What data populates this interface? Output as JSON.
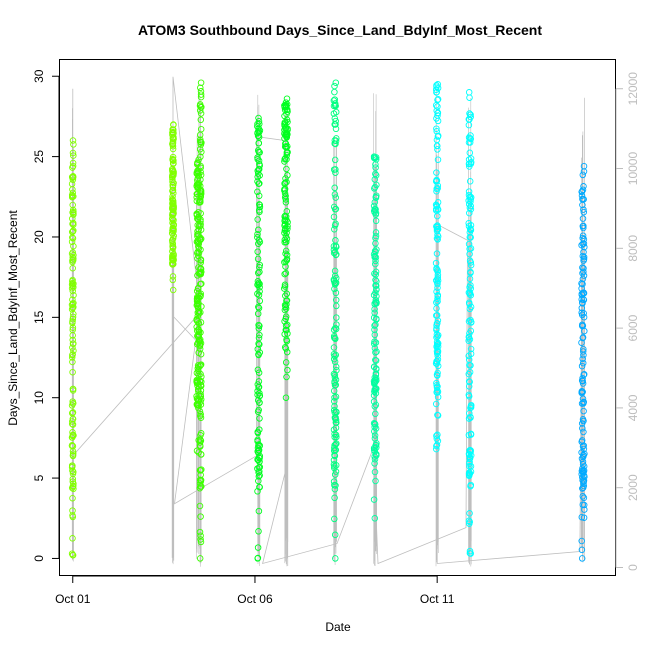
{
  "chart_data": {
    "type": "scatter",
    "title": "ATOM3 Southbound Days_Since_Land_BdyInf_Most_Recent",
    "xlabel": "Date",
    "ylabel": "Days_Since_Land_BdyInf_Most_Recent",
    "x_ticks": [
      "Oct 01",
      "Oct 06",
      "Oct 11"
    ],
    "y_ticks": [
      0,
      5,
      10,
      15,
      20,
      25,
      30
    ],
    "y_right_ticks": [
      0,
      2000,
      4000,
      6000,
      8000,
      10000,
      12000
    ],
    "xlim": [
      "2020-09-30T15:36",
      "2020-10-15T21:07"
    ],
    "ylim": [
      -1.03,
      31.01
    ],
    "y_right_lim": [
      -188,
      12720
    ],
    "grid": false,
    "legend": "none",
    "colors": {
      "trace_line": "#bebebe",
      "right_axis": "#bdbdbd",
      "frame": "#000000"
    },
    "series": [
      {
        "center": "2020-10-01T00:00",
        "spread_days": 0.04,
        "y_range": [
          0.2,
          26.0
        ],
        "color": "#80ff00"
      },
      {
        "center": "2020-10-03T18:00",
        "spread_days": 0.04,
        "y_range": [
          16.7,
          27.0
        ],
        "color": "#80ff00"
      },
      {
        "center": "2020-10-04T10:24",
        "spread_days": 0.07,
        "y_range": [
          6.6,
          24.8
        ],
        "color": "#3cff00"
      },
      {
        "center": "2020-10-04T12:14",
        "spread_days": 0.04,
        "y_range": [
          0.0,
          29.6
        ],
        "color": "#3cff00"
      },
      {
        "center": "2020-10-06T02:24",
        "spread_days": 0.07,
        "y_range": [
          0.0,
          27.4
        ],
        "color": "#00ff20"
      },
      {
        "center": "2020-10-06T20:24",
        "spread_days": 0.09,
        "y_range": [
          10.0,
          28.6
        ],
        "color": "#00ff20"
      },
      {
        "center": "2020-10-08T04:48",
        "spread_days": 0.07,
        "y_range": [
          0.0,
          29.6
        ],
        "color": "#00ff80"
      },
      {
        "center": "2020-10-09T07:12",
        "spread_days": 0.07,
        "y_range": [
          2.5,
          25.0
        ],
        "color": "#00ffa0"
      },
      {
        "center": "2020-10-11T00:00",
        "spread_days": 0.06,
        "y_range": [
          6.8,
          29.5
        ],
        "color": "#00ffff"
      },
      {
        "center": "2020-10-11T21:36",
        "spread_days": 0.07,
        "y_range": [
          0.3,
          29.0
        ],
        "color": "#00ffff"
      },
      {
        "center": "2020-10-15T00:00",
        "spread_days": 0.08,
        "y_range": [
          0.0,
          24.4
        ],
        "color": "#00aaff"
      }
    ],
    "trace_line_right_axis": [
      {
        "x": "2020-10-01T00:00",
        "y": 200
      },
      {
        "x": "2020-10-01T00:00",
        "y": 12000
      },
      {
        "x": "2020-10-01T00:00",
        "y": 2800
      },
      {
        "x": "2020-10-04T12:00",
        "y": 6400
      },
      {
        "x": "2020-10-03T18:00",
        "y": 12300
      },
      {
        "x": "2020-10-03T18:00",
        "y": 6300
      },
      {
        "x": "2020-10-04T09:00",
        "y": 5700
      },
      {
        "x": "2020-10-03T19:00",
        "y": 1600
      },
      {
        "x": "2020-10-04T13:00",
        "y": 2000
      },
      {
        "x": "2020-10-06T01:00",
        "y": 2800
      },
      {
        "x": "2020-10-06T01:00",
        "y": 10800
      },
      {
        "x": "2020-10-06T20:00",
        "y": 10700
      },
      {
        "x": "2020-10-06T20:00",
        "y": 2400
      },
      {
        "x": "2020-10-06T05:00",
        "y": 100
      },
      {
        "x": "2020-10-08T06:00",
        "y": 600
      },
      {
        "x": "2020-10-09T06:00",
        "y": 3000
      },
      {
        "x": "2020-10-09T09:00",
        "y": 100
      },
      {
        "x": "2020-10-11T19:00",
        "y": 1000
      },
      {
        "x": "2020-10-11T20:00",
        "y": 8200
      },
      {
        "x": "2020-10-11T00:00",
        "y": 8600
      },
      {
        "x": "2020-10-11T00:00",
        "y": 100
      },
      {
        "x": "2020-10-14T22:00",
        "y": 400
      },
      {
        "x": "2020-10-15T00:00",
        "y": 10000
      }
    ]
  }
}
